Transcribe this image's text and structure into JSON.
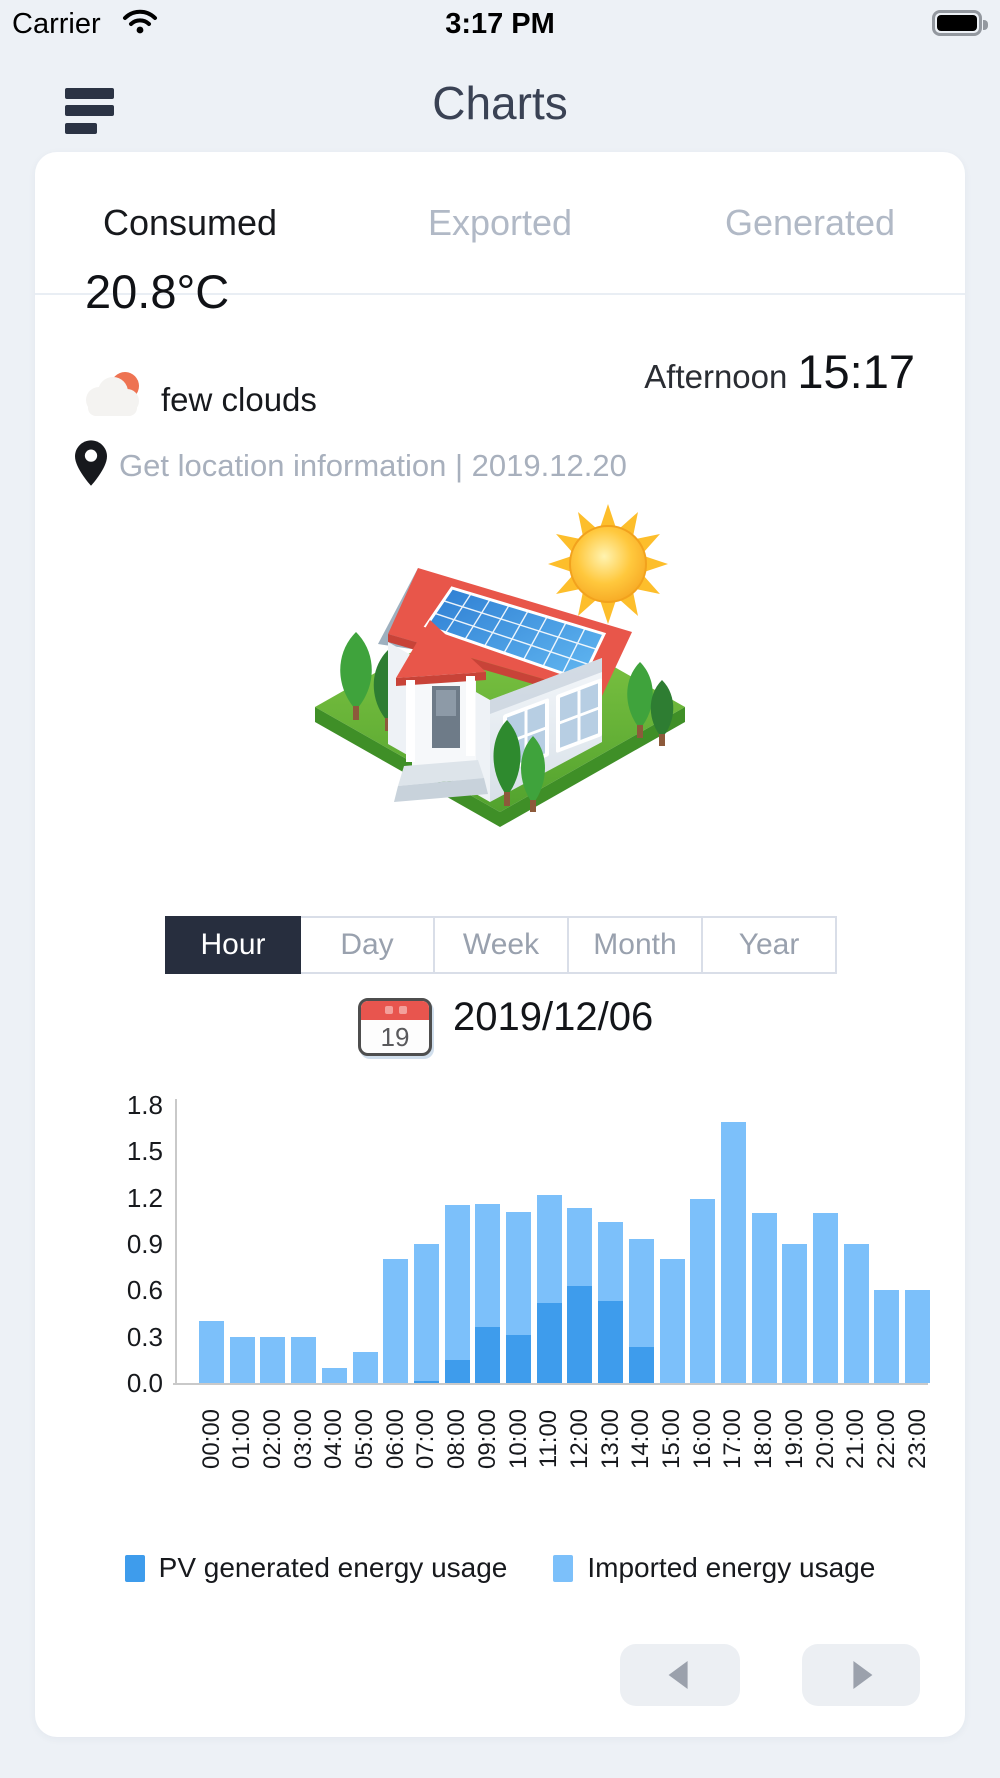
{
  "status_bar": {
    "carrier": "Carrier",
    "time": "3:17 PM"
  },
  "header": {
    "title": "Charts"
  },
  "tabs": [
    {
      "label": "Consumed",
      "active": true
    },
    {
      "label": "Exported",
      "active": false
    },
    {
      "label": "Generated",
      "active": false
    }
  ],
  "weather": {
    "temperature": "20.8°C",
    "condition": "few clouds",
    "day_period": "Afternoon",
    "time": "15:17",
    "location_line": "Get location information | 2019.12.20"
  },
  "period_tabs": [
    {
      "label": "Hour",
      "active": true
    },
    {
      "label": "Day",
      "active": false
    },
    {
      "label": "Week",
      "active": false
    },
    {
      "label": "Month",
      "active": false
    },
    {
      "label": "Year",
      "active": false
    }
  ],
  "date_picker": {
    "calendar_day": "19",
    "date": "2019/12/06"
  },
  "chart_data": {
    "type": "bar",
    "stacked": true,
    "title": "",
    "xlabel": "",
    "ylabel": "",
    "ylim": [
      0,
      1.8
    ],
    "y_ticks": [
      0.0,
      0.3,
      0.6,
      0.9,
      1.2,
      1.5,
      1.8
    ],
    "grid": false,
    "legend_position": "bottom",
    "categories": [
      "00:00",
      "01:00",
      "02:00",
      "03:00",
      "04:00",
      "05:00",
      "06:00",
      "07:00",
      "08:00",
      "09:00",
      "10:00",
      "11:00",
      "12:00",
      "13:00",
      "14:00",
      "15:00",
      "16:00",
      "17:00",
      "18:00",
      "19:00",
      "20:00",
      "21:00",
      "22:00",
      "23:00"
    ],
    "series": [
      {
        "name": "PV generated energy usage",
        "color": "#3e9cec",
        "values": [
          0,
          0,
          0,
          0,
          0,
          0,
          0,
          0.01,
          0.15,
          0.36,
          0.31,
          0.52,
          0.63,
          0.53,
          0.23,
          0,
          0,
          0,
          0,
          0,
          0,
          0,
          0,
          0
        ]
      },
      {
        "name": "Imported energy usage",
        "color": "#7cc0fa",
        "values": [
          0.4,
          0.3,
          0.3,
          0.3,
          0.1,
          0.2,
          0.8,
          0.89,
          1.0,
          0.8,
          0.8,
          0.7,
          0.5,
          0.51,
          0.7,
          0.8,
          1.19,
          1.69,
          1.1,
          0.9,
          1.1,
          0.9,
          0.6,
          0.6
        ]
      }
    ]
  },
  "colors": {
    "page_bg": "#edf1f6",
    "card_bg": "#ffffff",
    "accent_dark": "#272e3e",
    "bar_pv": "#3e9cec",
    "bar_imported": "#7cc0fa",
    "inactive_text": "#b1b9c6"
  }
}
